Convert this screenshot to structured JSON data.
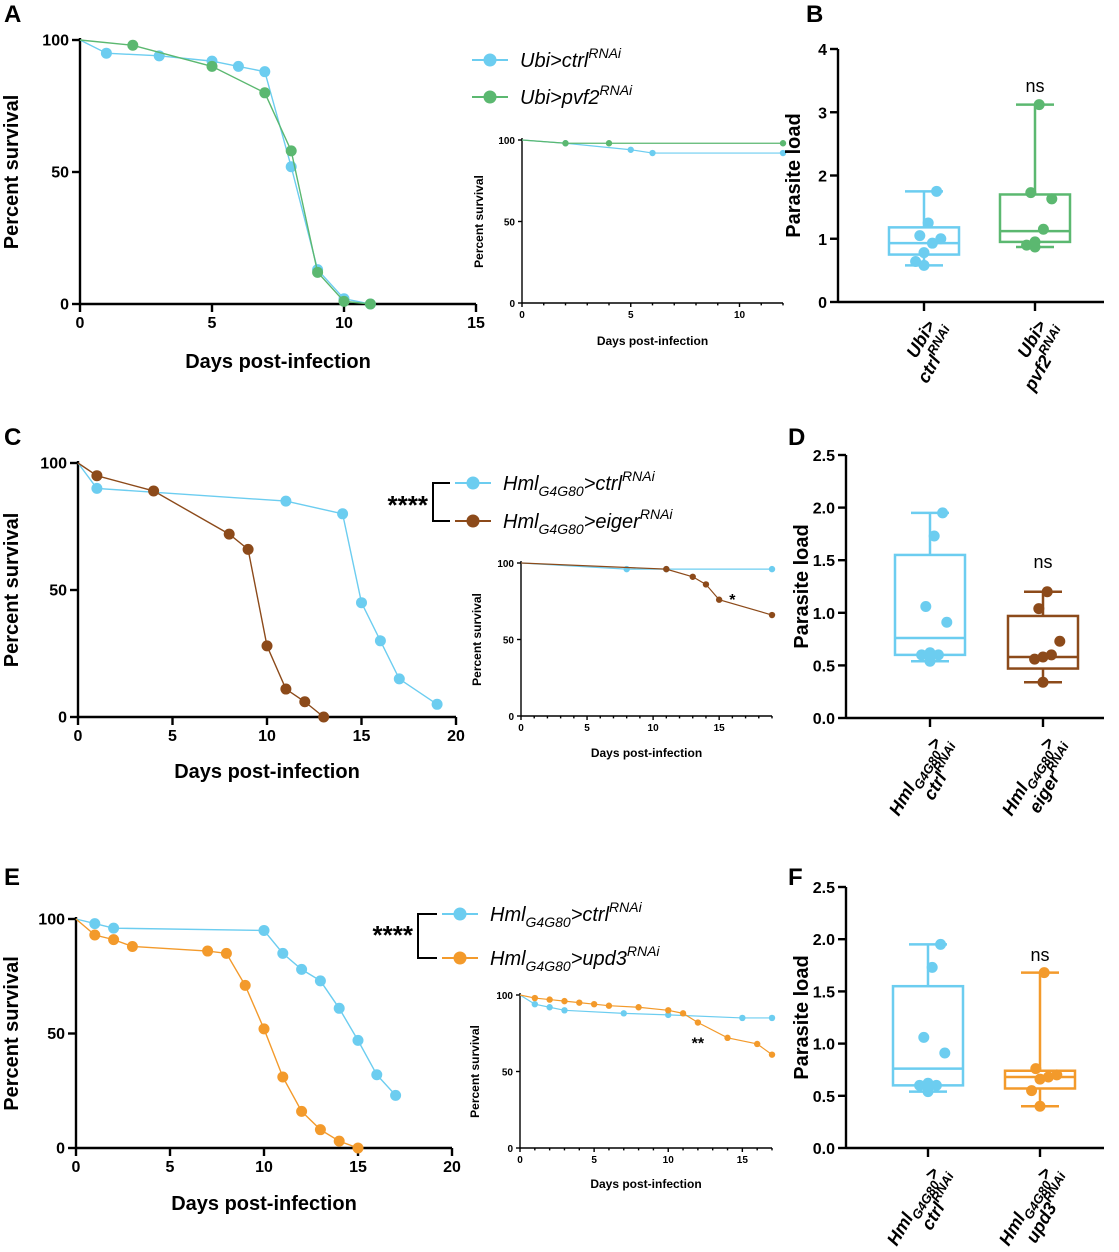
{
  "colors": {
    "ctrl": "#6ccdf0",
    "pvf2": "#5bb870",
    "eiger": "#8c4a1a",
    "upd3": "#f39a2b"
  },
  "chart_data": [
    {
      "id": "A",
      "panel_label": "A",
      "type": "line",
      "title": "",
      "xlabel": "Days post-infection",
      "ylabel": "Percent survival",
      "xlim": [
        0,
        15
      ],
      "ylim": [
        0,
        100
      ],
      "xticks": [
        "0",
        "5",
        "10",
        "15"
      ],
      "yticks": [
        "0",
        "50",
        "100"
      ],
      "legend": [
        "Ubi>ctrl",
        "Ubi>pvf2"
      ],
      "legend_sup": "RNAi",
      "significance": "",
      "series": [
        {
          "name": "Ubi>ctrl RNAi",
          "color_key": "ctrl",
          "x": [
            0,
            1,
            3,
            5,
            6,
            7,
            8,
            9,
            10,
            11
          ],
          "y": [
            100,
            95,
            94,
            92,
            90,
            88,
            52,
            13,
            2,
            0
          ]
        },
        {
          "name": "Ubi>pvf2 RNAi",
          "color_key": "pvf2",
          "x": [
            0,
            2,
            5,
            7,
            8,
            9,
            10,
            11
          ],
          "y": [
            100,
            98,
            90,
            80,
            58,
            12,
            1,
            0
          ]
        }
      ]
    },
    {
      "id": "A-inset",
      "type": "line",
      "xlabel": "Days post-infection",
      "ylabel": "Percent survival",
      "xlim": [
        0,
        12
      ],
      "ylim": [
        0,
        100
      ],
      "xticks": [
        "0",
        "5",
        "10"
      ],
      "yticks": [
        "0",
        "50",
        "100"
      ],
      "significance": "",
      "series": [
        {
          "name": "Ubi>ctrl RNAi",
          "color_key": "ctrl",
          "x": [
            0,
            2,
            5,
            6,
            12
          ],
          "y": [
            100,
            98,
            94,
            92,
            92
          ]
        },
        {
          "name": "Ubi>pvf2 RNAi",
          "color_key": "pvf2",
          "x": [
            0,
            2,
            4,
            12
          ],
          "y": [
            100,
            98,
            98,
            98
          ]
        }
      ]
    },
    {
      "id": "B",
      "panel_label": "B",
      "type": "box",
      "ylabel": "Parasite load",
      "ylim": [
        0,
        4
      ],
      "yticks": [
        "0",
        "1",
        "2",
        "3",
        "4"
      ],
      "significance": "ns",
      "groups": [
        {
          "label1": "Ubi>",
          "label2": "ctrl",
          "label_sup": "RNAi",
          "color_key": "ctrl",
          "min": 0.58,
          "q1": 0.75,
          "median": 0.93,
          "q3": 1.18,
          "max": 1.75,
          "points": [
            0.58,
            0.64,
            0.78,
            0.93,
            1.0,
            1.05,
            1.25,
            1.75
          ]
        },
        {
          "label1": "Ubi>",
          "label2": "pvf2",
          "label_sup": "RNAi",
          "color_key": "pvf2",
          "min": 0.87,
          "q1": 0.95,
          "median": 1.12,
          "q3": 1.7,
          "max": 3.12,
          "points": [
            0.87,
            0.9,
            0.95,
            1.15,
            1.63,
            1.73,
            3.12
          ]
        }
      ]
    },
    {
      "id": "C",
      "panel_label": "C",
      "type": "line",
      "xlabel": "Days post-infection",
      "ylabel": "Percent survival",
      "xlim": [
        0,
        20
      ],
      "ylim": [
        0,
        100
      ],
      "xticks": [
        "0",
        "5",
        "10",
        "15",
        "20"
      ],
      "yticks": [
        "0",
        "50",
        "100"
      ],
      "legend": [
        "Hml",
        "Hml"
      ],
      "legend_sub": "G4G80",
      "legend_suffix": [
        ">ctrl",
        ">eiger"
      ],
      "legend_sup": "RNAi",
      "significance": "****",
      "series": [
        {
          "name": "HmlG4G80>ctrl RNAi",
          "color_key": "ctrl",
          "x": [
            0,
            1,
            11,
            14,
            15,
            16,
            17,
            19
          ],
          "y": [
            100,
            90,
            85,
            80,
            45,
            30,
            15,
            5
          ]
        },
        {
          "name": "HmlG4G80>eiger RNAi",
          "color_key": "eiger",
          "x": [
            0,
            1,
            4,
            8,
            9,
            10,
            11,
            12,
            13
          ],
          "y": [
            100,
            95,
            89,
            72,
            66,
            28,
            11,
            6,
            0
          ]
        }
      ]
    },
    {
      "id": "C-inset",
      "type": "line",
      "xlabel": "Days post-infection",
      "ylabel": "Percent survival",
      "xlim": [
        0,
        19
      ],
      "ylim": [
        0,
        100
      ],
      "xticks": [
        "0",
        "5",
        "10",
        "15"
      ],
      "yticks": [
        "0",
        "50",
        "100"
      ],
      "significance": "*",
      "series": [
        {
          "name": "HmlG4G80>ctrl RNAi",
          "color_key": "ctrl",
          "x": [
            0,
            8,
            11,
            19
          ],
          "y": [
            100,
            96,
            96,
            96
          ]
        },
        {
          "name": "HmlG4G80>eiger RNAi",
          "color_key": "eiger",
          "x": [
            0,
            11,
            13,
            14,
            15,
            19
          ],
          "y": [
            100,
            96,
            91,
            86,
            76,
            66
          ]
        }
      ]
    },
    {
      "id": "D",
      "panel_label": "D",
      "type": "box",
      "ylabel": "Parasite load",
      "ylim": [
        0,
        2.5
      ],
      "yticks": [
        "0.0",
        "0.5",
        "1.0",
        "1.5",
        "2.0",
        "2.5"
      ],
      "significance": "ns",
      "groups": [
        {
          "label1": "Hml",
          "label_sub": "G4G80",
          "label1b": ">",
          "label2": "ctrl",
          "label_sup": "RNAi",
          "color_key": "ctrl",
          "min": 0.54,
          "q1": 0.6,
          "median": 0.76,
          "q3": 1.55,
          "max": 1.95,
          "points": [
            0.54,
            0.6,
            0.62,
            0.6,
            0.91,
            1.06,
            1.73,
            1.95
          ]
        },
        {
          "label1": "Hml",
          "label_sub": "G4G80",
          "label1b": ">",
          "label2": "eiger",
          "label_sup": "RNAi",
          "color_key": "eiger",
          "min": 0.34,
          "q1": 0.47,
          "median": 0.58,
          "q3": 0.97,
          "max": 1.2,
          "points": [
            0.34,
            0.56,
            0.58,
            0.6,
            0.73,
            1.04,
            1.2
          ]
        }
      ]
    },
    {
      "id": "E",
      "panel_label": "E",
      "type": "line",
      "xlabel": "Days post-infection",
      "ylabel": "Percent survival",
      "xlim": [
        0,
        20
      ],
      "ylim": [
        0,
        100
      ],
      "xticks": [
        "0",
        "5",
        "10",
        "15",
        "20"
      ],
      "yticks": [
        "0",
        "50",
        "100"
      ],
      "legend": [
        "Hml",
        "Hml"
      ],
      "legend_sub": "G4G80",
      "legend_suffix": [
        ">ctrl",
        ">upd3"
      ],
      "legend_sup": "RNAi",
      "significance": "****",
      "series": [
        {
          "name": "HmlG4G80>ctrl RNAi",
          "color_key": "ctrl",
          "x": [
            0,
            1,
            2,
            10,
            11,
            12,
            13,
            14,
            15,
            16,
            17
          ],
          "y": [
            100,
            98,
            96,
            95,
            85,
            78,
            73,
            61,
            47,
            32,
            23
          ]
        },
        {
          "name": "HmlG4G80>upd3 RNAi",
          "color_key": "upd3",
          "x": [
            0,
            1,
            2,
            3,
            7,
            8,
            9,
            10,
            11,
            12,
            13,
            14,
            15
          ],
          "y": [
            100,
            93,
            91,
            88,
            86,
            85,
            71,
            52,
            31,
            16,
            8,
            3,
            0
          ]
        }
      ]
    },
    {
      "id": "E-inset",
      "type": "line",
      "xlabel": "Days post-infection",
      "ylabel": "Percent survival",
      "xlim": [
        0,
        17
      ],
      "ylim": [
        0,
        100
      ],
      "xticks": [
        "0",
        "5",
        "10",
        "15"
      ],
      "yticks": [
        "0",
        "50",
        "100"
      ],
      "significance": "**",
      "series": [
        {
          "name": "HmlG4G80>ctrl RNAi",
          "color_key": "ctrl",
          "x": [
            0,
            1,
            2,
            3,
            7,
            10,
            15,
            17
          ],
          "y": [
            100,
            94,
            92,
            90,
            88,
            87,
            85,
            85
          ]
        },
        {
          "name": "HmlG4G80>upd3 RNAi",
          "color_key": "upd3",
          "x": [
            0,
            1,
            2,
            3,
            4,
            5,
            6,
            8,
            10,
            11,
            12,
            14,
            16,
            17
          ],
          "y": [
            100,
            98,
            97,
            96,
            95,
            94,
            93,
            92,
            90,
            88,
            82,
            72,
            68,
            61
          ]
        }
      ]
    },
    {
      "id": "F",
      "panel_label": "F",
      "type": "box",
      "ylabel": "Parasite load",
      "ylim": [
        0,
        2.5
      ],
      "yticks": [
        "0.0",
        "0.5",
        "1.0",
        "1.5",
        "2.0",
        "2.5"
      ],
      "significance": "ns",
      "groups": [
        {
          "label1": "Hml",
          "label_sub": "G4G80",
          "label1b": ">",
          "label2": "ctrl",
          "label_sup": "RNAi",
          "color_key": "ctrl",
          "min": 0.54,
          "q1": 0.6,
          "median": 0.76,
          "q3": 1.55,
          "max": 1.95,
          "points": [
            0.54,
            0.6,
            0.62,
            0.6,
            0.91,
            1.06,
            1.73,
            1.95
          ]
        },
        {
          "label1": "Hml",
          "label_sub": "G4G80",
          "label1b": ">",
          "label2": "upd3",
          "label_sup": "RNAi",
          "color_key": "upd3",
          "min": 0.4,
          "q1": 0.57,
          "median": 0.68,
          "q3": 0.74,
          "max": 1.68,
          "points": [
            0.4,
            0.55,
            0.66,
            0.68,
            0.7,
            0.76,
            1.68
          ]
        }
      ]
    }
  ]
}
